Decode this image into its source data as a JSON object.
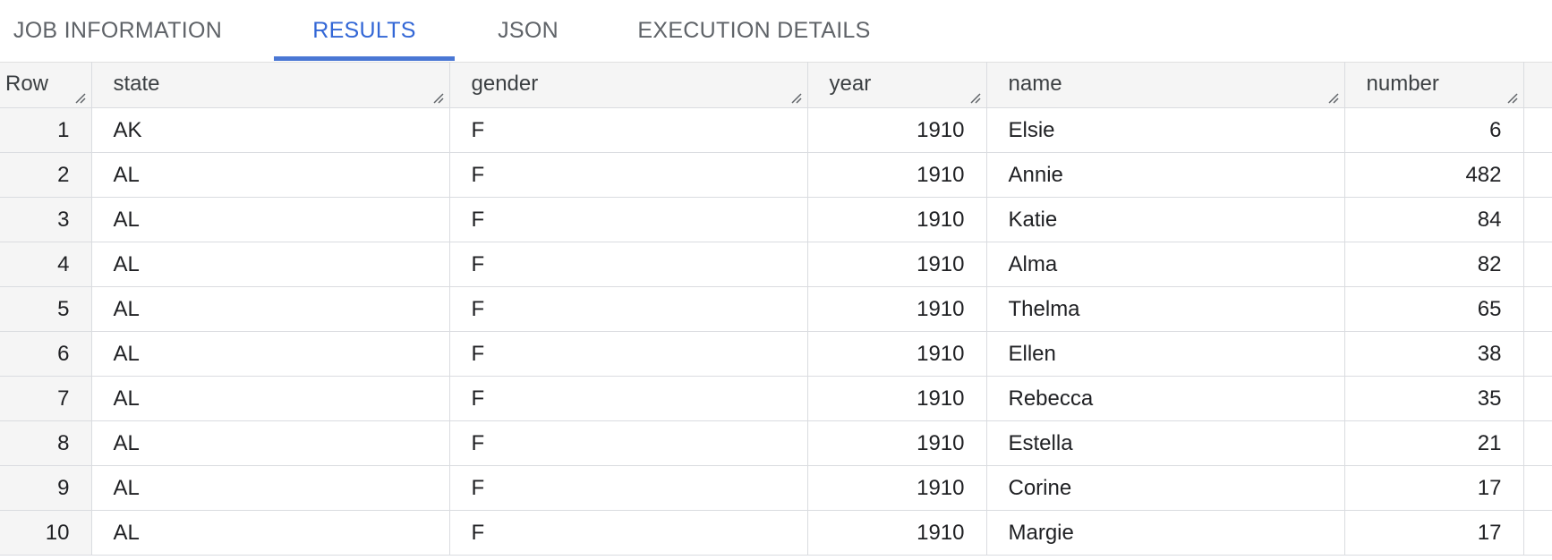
{
  "tabs": [
    {
      "label": "JOB INFORMATION",
      "active": false
    },
    {
      "label": "RESULTS",
      "active": true
    },
    {
      "label": "JSON",
      "active": false
    },
    {
      "label": "EXECUTION DETAILS",
      "active": false
    }
  ],
  "table": {
    "columns": [
      "Row",
      "state",
      "gender",
      "year",
      "name",
      "number"
    ],
    "rows": [
      {
        "row": "1",
        "state": "AK",
        "gender": "F",
        "year": "1910",
        "name": "Elsie",
        "number": "6"
      },
      {
        "row": "2",
        "state": "AL",
        "gender": "F",
        "year": "1910",
        "name": "Annie",
        "number": "482"
      },
      {
        "row": "3",
        "state": "AL",
        "gender": "F",
        "year": "1910",
        "name": "Katie",
        "number": "84"
      },
      {
        "row": "4",
        "state": "AL",
        "gender": "F",
        "year": "1910",
        "name": "Alma",
        "number": "82"
      },
      {
        "row": "5",
        "state": "AL",
        "gender": "F",
        "year": "1910",
        "name": "Thelma",
        "number": "65"
      },
      {
        "row": "6",
        "state": "AL",
        "gender": "F",
        "year": "1910",
        "name": "Ellen",
        "number": "38"
      },
      {
        "row": "7",
        "state": "AL",
        "gender": "F",
        "year": "1910",
        "name": "Rebecca",
        "number": "35"
      },
      {
        "row": "8",
        "state": "AL",
        "gender": "F",
        "year": "1910",
        "name": "Estella",
        "number": "21"
      },
      {
        "row": "9",
        "state": "AL",
        "gender": "F",
        "year": "1910",
        "name": "Corine",
        "number": "17"
      },
      {
        "row": "10",
        "state": "AL",
        "gender": "F",
        "year": "1910",
        "name": "Margie",
        "number": "17"
      }
    ]
  },
  "colors": {
    "accent": "#3367d6",
    "tab_inactive": "#5f6368",
    "header_bg": "#f5f5f5",
    "grid_line": "#dadce0"
  },
  "icons": {
    "column_resize": "resize-handle-icon"
  }
}
